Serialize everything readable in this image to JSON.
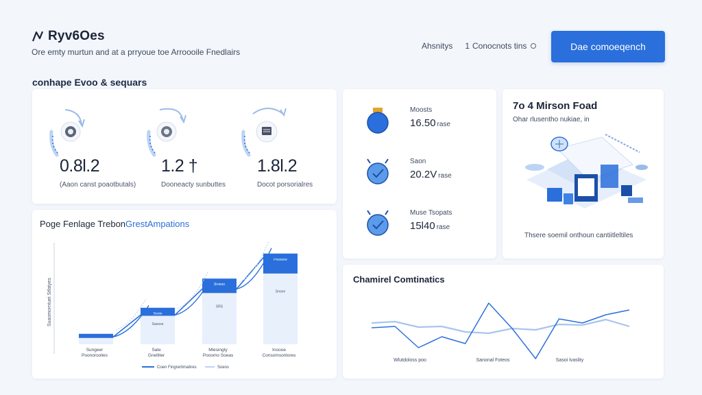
{
  "header": {
    "brand": "Ryv6Oes",
    "tagline": "Ore emty murtun and at a prryoue toe Arroooile Fnedlairs",
    "nav": [
      {
        "label": "Ahsnitys",
        "suffix": "1"
      },
      {
        "label": "Conocnots tins"
      }
    ],
    "cta": "Dae comoeqench"
  },
  "section_title": "conhape Evoo & sequars",
  "stats": [
    {
      "value": "0.8l.2",
      "label": "(Aaon canst poaotbutals)",
      "icon": "sync-badge-icon"
    },
    {
      "value": "1.2 †",
      "label": "Dooneacty sunbuttes",
      "icon": "sync-badge-icon"
    },
    {
      "value": "1.8l.2",
      "label": "Docot porsorialres",
      "icon": "sync-document-icon"
    }
  ],
  "metrics": [
    {
      "name": "Moosts",
      "value": "16.50",
      "unit": "rase",
      "icon": "chip-icon"
    },
    {
      "name": "Saon",
      "value": "20.2V",
      "unit": "rase",
      "icon": "check-face-icon"
    },
    {
      "name": "Muse Tsopats",
      "value": "15l40",
      "unit": "rase",
      "icon": "check-face-icon"
    }
  ],
  "promo": {
    "title": "7o 4 Mirson Foad",
    "subtitle": "Ohar rlusentho nukiae, in",
    "footer": "Thsere soemil onthoun cantiitleltiles",
    "art": "isometric-workspace-illustration"
  },
  "funnel": {
    "title_main": "Poge Fenlage Trebon",
    "title_accent": "GrestAmpations",
    "ylabel": "Suaomorntuei Stfatyes",
    "legend": [
      "Coen Fingrertimatires",
      "Soeos"
    ]
  },
  "line_card": {
    "title": "Chamirel Comtinatics"
  },
  "chart_data": [
    {
      "type": "bar",
      "title": "Poge Fenlage TrebonGrestAmpations",
      "categories": [
        "Sungeer Poonoroolies",
        "Sate Gnelliter",
        "Mlesingty Pooomo Soeas",
        "Inoooe Consomsonlores"
      ],
      "category_display": [
        [
          "Sungeer",
          "Poonoroolies"
        ],
        [
          "Sate",
          "Gnelliter"
        ],
        [
          "Mlesingty",
          "Pooomo Soeas"
        ],
        [
          "Inoooe",
          "Consomsonlores"
        ]
      ],
      "bar_labels": [
        "",
        "Snnte",
        "Sroeoo",
        "Pnsoone"
      ],
      "secondary_labels": [
        "",
        "Sasone",
        "SRS",
        "Snooe"
      ],
      "series": [
        {
          "name": "Coen Fingrertimatires",
          "values": [
            7,
            28,
            53,
            83
          ]
        },
        {
          "name": "Soeos",
          "values": [
            10,
            35,
            63,
            87
          ]
        }
      ],
      "ylabel": "Suaomorntuei Stfatyes",
      "ylim": [
        0,
        100
      ],
      "legend": "bottom"
    },
    {
      "type": "line",
      "title": "Chamirel Comtinatics",
      "x": [
        0,
        1,
        2,
        3,
        4,
        5,
        6,
        7,
        8,
        9,
        10,
        11
      ],
      "x_tick_labels": [
        "Wlutdoloss poo",
        "Sanonal Foteos",
        "Sasoi lvaslity"
      ],
      "series": [
        {
          "name": "primary",
          "values": [
            0.48,
            0.5,
            0.19,
            0.35,
            0.25,
            0.84,
            0.47,
            0.03,
            0.61,
            0.55,
            0.67,
            0.74
          ]
        },
        {
          "name": "secondary",
          "values": [
            0.55,
            0.57,
            0.49,
            0.5,
            0.42,
            0.4,
            0.47,
            0.45,
            0.53,
            0.52,
            0.6,
            0.5
          ]
        }
      ],
      "ylim": [
        0,
        1
      ]
    }
  ],
  "colors": {
    "accent": "#2a6fdb",
    "accent_light": "#bcd3f4",
    "bar_fill": "#e6eefb",
    "background": "#f3f6fb",
    "card": "#ffffff",
    "text": "#1b2438"
  }
}
